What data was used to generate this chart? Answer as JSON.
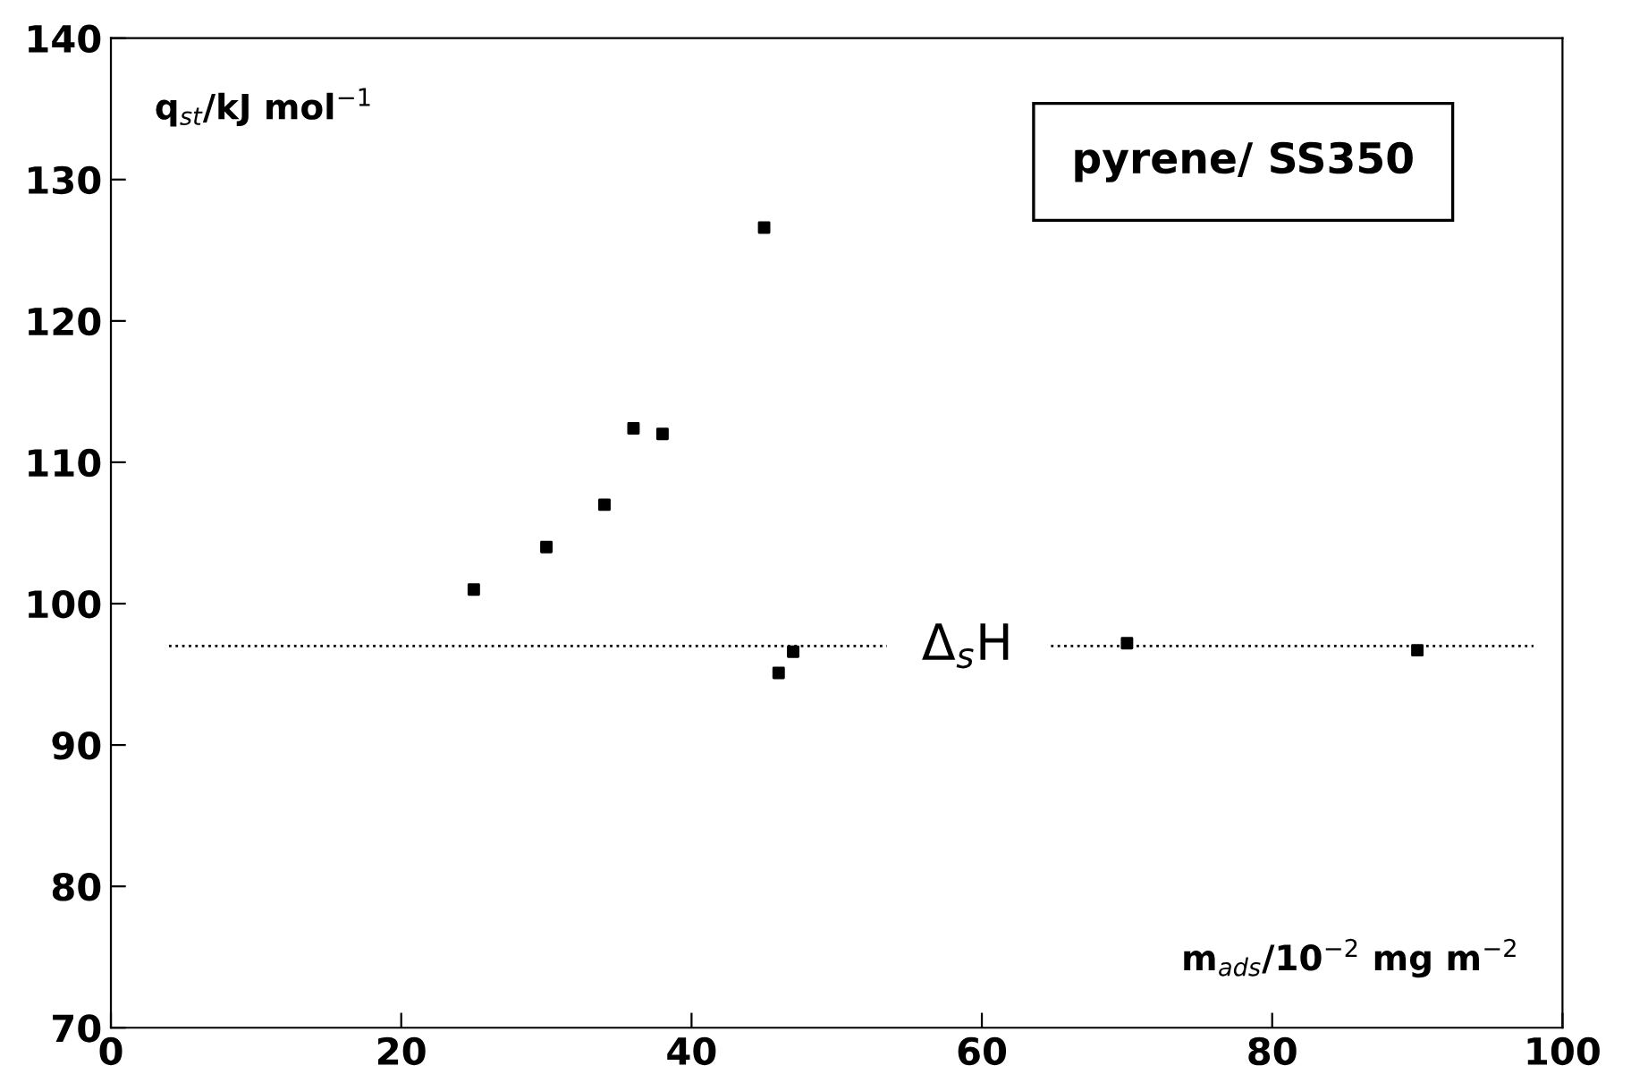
{
  "chart_data": {
    "type": "scatter",
    "title": "pyrene/ SS350",
    "xlabel": "m$_{ads}$/10$^{−2}$ mg m$^{−2}$",
    "ylabel": "q$_{st}$/kJ mol$^{−1}$",
    "series": [
      {
        "color": "#000000",
        "x": [
          25,
          30,
          34,
          36,
          38,
          45,
          46,
          47,
          70,
          90
        ],
        "values": [
          101,
          104,
          107,
          112.4,
          112,
          126.6,
          95.1,
          96.6,
          97.2,
          96.7
        ]
      }
    ],
    "marker": "square",
    "ref_lines": [
      {
        "axis": "y",
        "value": 97,
        "label": "Δ$_{s}$H",
        "line_style": "dotted",
        "color": "#000000"
      }
    ],
    "xlim": [
      0,
      100
    ],
    "xticks": [
      0,
      20,
      40,
      60,
      80,
      100
    ],
    "ylim": [
      70,
      140
    ],
    "yticks": [
      70,
      80,
      90,
      100,
      110,
      120,
      130,
      140
    ],
    "grid": false,
    "legend": false
  }
}
